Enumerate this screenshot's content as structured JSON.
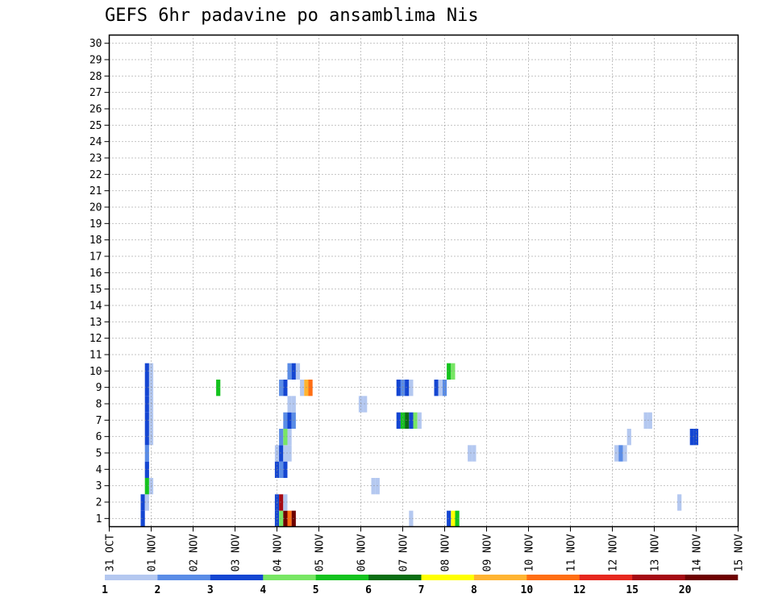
{
  "chart_data": {
    "type": "heatmap",
    "title": "GEFS 6hr padavine po ansamblima Nis",
    "xlabel": "",
    "ylabel": "",
    "x_tick_labels": [
      "31 OCT",
      "01 NOV",
      "02 NOV",
      "03 NOV",
      "04 NOV",
      "05 NOV",
      "06 NOV",
      "07 NOV",
      "08 NOV",
      "09 NOV",
      "10 NOV",
      "11 NOV",
      "12 NOV",
      "13 NOV",
      "14 NOV",
      "15 NOV"
    ],
    "y_tick_labels": [
      "1",
      "2",
      "3",
      "4",
      "5",
      "6",
      "7",
      "8",
      "9",
      "10",
      "11",
      "12",
      "13",
      "14",
      "15",
      "16",
      "17",
      "18",
      "19",
      "20",
      "21",
      "22",
      "23",
      "24",
      "25",
      "26",
      "27",
      "28",
      "29",
      "30"
    ],
    "ylim": [
      0,
      30
    ],
    "grid": true,
    "legend": {
      "placement": "bottom",
      "thresholds": [
        "1",
        "2",
        "3",
        "4",
        "5",
        "6",
        "7",
        "8",
        "10",
        "12",
        "15",
        "20"
      ],
      "colors": [
        "#b4c8f0",
        "#5a8ce6",
        "#1446d2",
        "#78e664",
        "#14c31e",
        "#0a6e14",
        "#ffff00",
        "#ffb432",
        "#ff6e14",
        "#e6281e",
        "#a50a14",
        "#6e0000"
      ]
    },
    "cells": [
      {
        "member": 1,
        "step": 8,
        "level": 2
      },
      {
        "member": 1,
        "step": 40,
        "level": 2
      },
      {
        "member": 1,
        "step": 41,
        "level": 3
      },
      {
        "member": 1,
        "step": 42,
        "level": 11
      },
      {
        "member": 1,
        "step": 43,
        "level": 8
      },
      {
        "member": 1,
        "step": 44,
        "level": 11
      },
      {
        "member": 1,
        "step": 72,
        "level": 0
      },
      {
        "member": 1,
        "step": 81,
        "level": 2
      },
      {
        "member": 1,
        "step": 82,
        "level": 6
      },
      {
        "member": 1,
        "step": 83,
        "level": 4
      },
      {
        "member": 2,
        "step": 8,
        "level": 2
      },
      {
        "member": 2,
        "step": 9,
        "level": 0
      },
      {
        "member": 2,
        "step": 40,
        "level": 2
      },
      {
        "member": 2,
        "step": 41,
        "level": 10
      },
      {
        "member": 2,
        "step": 42,
        "level": 0
      },
      {
        "member": 2,
        "step": 136,
        "level": 0
      },
      {
        "member": 3,
        "step": 9,
        "level": 4
      },
      {
        "member": 3,
        "step": 10,
        "level": 0
      },
      {
        "member": 3,
        "step": 63,
        "level": 0
      },
      {
        "member": 3,
        "step": 64,
        "level": 0
      },
      {
        "member": 4,
        "step": 9,
        "level": 2
      },
      {
        "member": 4,
        "step": 40,
        "level": 2
      },
      {
        "member": 4,
        "step": 41,
        "level": 1
      },
      {
        "member": 4,
        "step": 42,
        "level": 2
      },
      {
        "member": 5,
        "step": 9,
        "level": 1
      },
      {
        "member": 5,
        "step": 40,
        "level": 0
      },
      {
        "member": 5,
        "step": 41,
        "level": 2
      },
      {
        "member": 5,
        "step": 42,
        "level": 0
      },
      {
        "member": 5,
        "step": 43,
        "level": 0
      },
      {
        "member": 5,
        "step": 86,
        "level": 0
      },
      {
        "member": 5,
        "step": 87,
        "level": 0
      },
      {
        "member": 5,
        "step": 121,
        "level": 0
      },
      {
        "member": 5,
        "step": 122,
        "level": 1
      },
      {
        "member": 5,
        "step": 123,
        "level": 0
      },
      {
        "member": 6,
        "step": 9,
        "level": 2
      },
      {
        "member": 6,
        "step": 10,
        "level": 0
      },
      {
        "member": 6,
        "step": 41,
        "level": 1
      },
      {
        "member": 6,
        "step": 42,
        "level": 3
      },
      {
        "member": 6,
        "step": 43,
        "level": 0
      },
      {
        "member": 6,
        "step": 124,
        "level": 0
      },
      {
        "member": 6,
        "step": 139,
        "level": 2
      },
      {
        "member": 6,
        "step": 140,
        "level": 2
      },
      {
        "member": 7,
        "step": 9,
        "level": 2
      },
      {
        "member": 7,
        "step": 10,
        "level": 0
      },
      {
        "member": 7,
        "step": 42,
        "level": 1
      },
      {
        "member": 7,
        "step": 43,
        "level": 2
      },
      {
        "member": 7,
        "step": 44,
        "level": 1
      },
      {
        "member": 7,
        "step": 69,
        "level": 2
      },
      {
        "member": 7,
        "step": 70,
        "level": 4
      },
      {
        "member": 7,
        "step": 71,
        "level": 5
      },
      {
        "member": 7,
        "step": 72,
        "level": 2
      },
      {
        "member": 7,
        "step": 73,
        "level": 3
      },
      {
        "member": 7,
        "step": 74,
        "level": 0
      },
      {
        "member": 7,
        "step": 128,
        "level": 0
      },
      {
        "member": 7,
        "step": 129,
        "level": 0
      },
      {
        "member": 8,
        "step": 9,
        "level": 2
      },
      {
        "member": 8,
        "step": 10,
        "level": 0
      },
      {
        "member": 8,
        "step": 43,
        "level": 0
      },
      {
        "member": 8,
        "step": 44,
        "level": 0
      },
      {
        "member": 8,
        "step": 60,
        "level": 0
      },
      {
        "member": 8,
        "step": 61,
        "level": 0
      },
      {
        "member": 9,
        "step": 9,
        "level": 2
      },
      {
        "member": 9,
        "step": 10,
        "level": 0
      },
      {
        "member": 9,
        "step": 26,
        "level": 4
      },
      {
        "member": 9,
        "step": 41,
        "level": 1
      },
      {
        "member": 9,
        "step": 42,
        "level": 2
      },
      {
        "member": 9,
        "step": 46,
        "level": 0
      },
      {
        "member": 9,
        "step": 47,
        "level": 7
      },
      {
        "member": 9,
        "step": 48,
        "level": 8
      },
      {
        "member": 9,
        "step": 69,
        "level": 2
      },
      {
        "member": 9,
        "step": 70,
        "level": 1
      },
      {
        "member": 9,
        "step": 71,
        "level": 2
      },
      {
        "member": 9,
        "step": 72,
        "level": 0
      },
      {
        "member": 9,
        "step": 78,
        "level": 2
      },
      {
        "member": 9,
        "step": 79,
        "level": 0
      },
      {
        "member": 9,
        "step": 80,
        "level": 1
      },
      {
        "member": 10,
        "step": 9,
        "level": 2
      },
      {
        "member": 10,
        "step": 10,
        "level": 0
      },
      {
        "member": 10,
        "step": 43,
        "level": 1
      },
      {
        "member": 10,
        "step": 44,
        "level": 2
      },
      {
        "member": 10,
        "step": 45,
        "level": 0
      },
      {
        "member": 10,
        "step": 81,
        "level": 4
      },
      {
        "member": 10,
        "step": 82,
        "level": 3
      }
    ]
  }
}
